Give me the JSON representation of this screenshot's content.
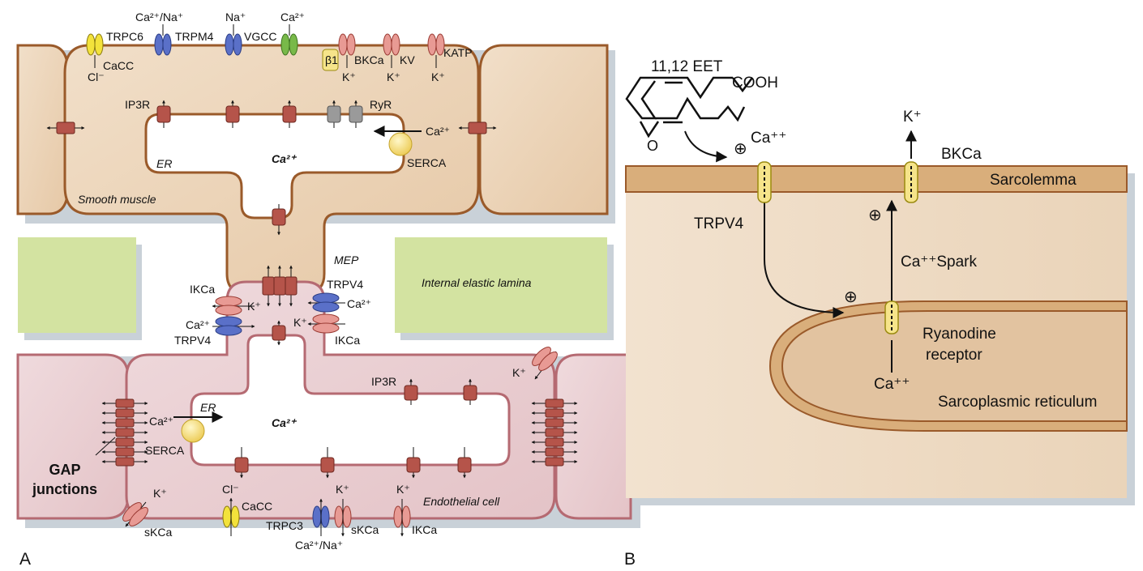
{
  "panel_a": {
    "letter": "A",
    "channels_top": {
      "trpc6": "TRPC6",
      "trpc6_ion": "Ca²⁺/Na⁺",
      "trpm4": "TRPM4",
      "trpm4_ion": "Na⁺",
      "vgcc": "VGCC",
      "vgcc_ion": "Ca²⁺",
      "cacc": "CaCC",
      "cacc_ion": "Cl⁻",
      "beta1": "β1",
      "bkca": "BKCa",
      "kv": "KV",
      "katp": "KATP",
      "k_ion": "K⁺"
    },
    "smooth_muscle": {
      "label": "Smooth muscle",
      "er": "ER",
      "ca_center": "Ca²⁺",
      "ip3r": "IP3R",
      "ryr": "RyR",
      "ca_in": "Ca²⁺",
      "serca": "SERCA"
    },
    "mep": "MEP",
    "internal_elastic_lamina": "Internal elastic lamina",
    "mep_channels": {
      "ikca_left": "IKCa",
      "k_left": "K⁺",
      "ca_left": "Ca²⁺",
      "trpv4_left": "TRPV4",
      "trpv4_right": "TRPV4",
      "ca_right": "Ca²⁺",
      "k_right": "K⁺",
      "ikca_right": "IKCa"
    },
    "endothelial": {
      "label": "Endothelial cell",
      "er": "ER",
      "ca_center": "Ca²⁺",
      "ip3r": "IP3R",
      "ca_in": "Ca²⁺",
      "serca": "SERCA",
      "gap_junctions": "GAP junctions",
      "k_edge": "K⁺"
    },
    "channels_bottom": {
      "skca_left": "sKCa",
      "k_left": "K⁺",
      "cacc": "CaCC",
      "cl": "Cl⁻",
      "trpc3": "TRPC3",
      "trpc3_ion": "Ca²⁺/Na⁺",
      "skca": "sKCa",
      "k_mid": "K⁺",
      "ikca": "IKCa",
      "k_right": "K⁺"
    }
  },
  "panel_b": {
    "letter": "B",
    "eet": "11,12 EET",
    "cooh": "COOH",
    "epoxide_o": "O",
    "ca_top": "Ca⁺⁺",
    "k_top": "K⁺",
    "bkca": "BKCa",
    "sarcolemma": "Sarcolemma",
    "trpv4": "TRPV4",
    "spark": "Ca⁺⁺Spark",
    "ryanodine": "Ryanodine",
    "receptor": "receptor",
    "ca_bottom": "Ca⁺⁺",
    "sr": "Sarcoplasmic reticulum",
    "plus": "⊕"
  },
  "colors": {
    "smooth_muscle": "#ebd3b8",
    "smooth_border": "#9a5a2a",
    "endothelial": "#ead0d3",
    "endo_border": "#b56a72",
    "lamina": "#d3e3a1",
    "channel_red": "#b5544a",
    "serca_yellow": "#f3d975"
  }
}
